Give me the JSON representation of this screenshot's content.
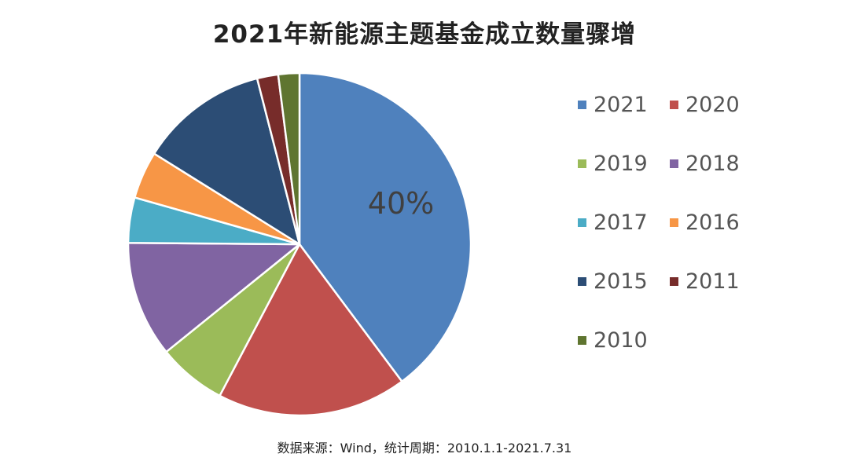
{
  "chart_data": {
    "type": "pie",
    "title": "2021年新能源主题基金成立数量骤增",
    "source_note": "数据来源：Wind，统计周期：2010.1.1-2021.7.31",
    "legend_position": "right",
    "slices": [
      {
        "label": "2021",
        "value": 40,
        "color": "#4F81BD",
        "data_label": "40%"
      },
      {
        "label": "2020",
        "value": 18,
        "color": "#C0504D"
      },
      {
        "label": "2019",
        "value": 6.5,
        "color": "#9BBB59"
      },
      {
        "label": "2018",
        "value": 11,
        "color": "#8064A2"
      },
      {
        "label": "2017",
        "value": 4.3,
        "color": "#4BACC6"
      },
      {
        "label": "2016",
        "value": 4.5,
        "color": "#F79646"
      },
      {
        "label": "2015",
        "value": 12.2,
        "color": "#2C4D75"
      },
      {
        "label": "2011",
        "value": 2,
        "color": "#772C2A"
      },
      {
        "label": "2010",
        "value": 2,
        "color": "#5F7530"
      }
    ]
  }
}
